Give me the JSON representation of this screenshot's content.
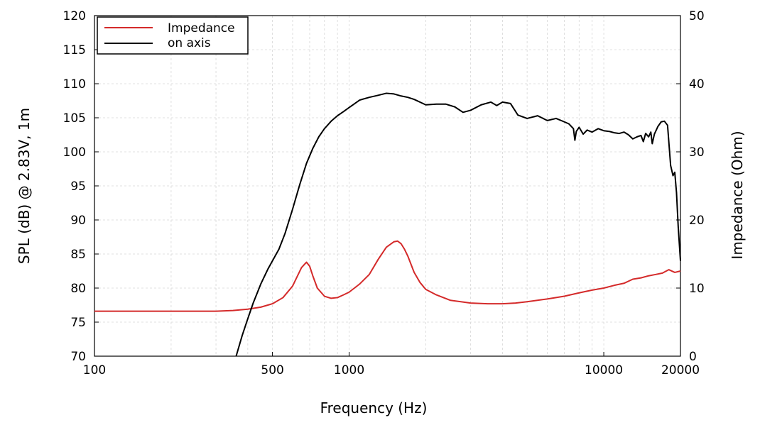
{
  "chart_data": {
    "type": "line",
    "title": "",
    "xlabel": "Frequency (Hz)",
    "ylabel": "SPL (dB) @ 2.83V, 1m",
    "y2label": "Impedance (Ohm)",
    "x_scale": "log",
    "xlim": [
      100,
      20000
    ],
    "ylim": [
      70,
      120
    ],
    "y2lim": [
      0,
      50
    ],
    "grid": true,
    "legend_position": "top-left",
    "x_ticks": [
      {
        "value": 100,
        "label": "100"
      },
      {
        "value": 500,
        "label": "500"
      },
      {
        "value": 1000,
        "label": "1000"
      },
      {
        "value": 10000,
        "label": "10000"
      },
      {
        "value": 20000,
        "label": "20000"
      }
    ],
    "y_ticks": [
      {
        "value": 70,
        "label": "70"
      },
      {
        "value": 75,
        "label": "75"
      },
      {
        "value": 80,
        "label": "80"
      },
      {
        "value": 85,
        "label": "85"
      },
      {
        "value": 90,
        "label": "90"
      },
      {
        "value": 95,
        "label": "95"
      },
      {
        "value": 100,
        "label": "100"
      },
      {
        "value": 105,
        "label": "105"
      },
      {
        "value": 110,
        "label": "110"
      },
      {
        "value": 115,
        "label": "115"
      },
      {
        "value": 120,
        "label": "120"
      }
    ],
    "y2_ticks": [
      {
        "value": 0,
        "label": "0"
      },
      {
        "value": 10,
        "label": "10"
      },
      {
        "value": 20,
        "label": "20"
      },
      {
        "value": 30,
        "label": "30"
      },
      {
        "value": 40,
        "label": "40"
      },
      {
        "value": 50,
        "label": "50"
      }
    ],
    "series": [
      {
        "name": "Impedance",
        "color": "#d42a2a",
        "axis": "right",
        "x": [
          100,
          200,
          300,
          350,
          400,
          450,
          500,
          550,
          600,
          650,
          680,
          700,
          720,
          750,
          800,
          850,
          900,
          950,
          1000,
          1100,
          1200,
          1300,
          1400,
          1500,
          1550,
          1600,
          1650,
          1700,
          1800,
          1900,
          2000,
          2200,
          2500,
          3000,
          3500,
          4000,
          4500,
          5000,
          6000,
          7000,
          8000,
          9000,
          10000,
          11000,
          12000,
          13000,
          14000,
          15000,
          16000,
          17000,
          18000,
          19000,
          20000
        ],
        "values": [
          6.6,
          6.6,
          6.6,
          6.7,
          6.9,
          7.2,
          7.7,
          8.6,
          10.3,
          13.0,
          13.8,
          13.2,
          11.8,
          10.0,
          8.8,
          8.5,
          8.6,
          9.0,
          9.4,
          10.6,
          12.0,
          14.2,
          16.0,
          16.8,
          16.9,
          16.5,
          15.7,
          14.7,
          12.3,
          10.8,
          9.8,
          9.0,
          8.2,
          7.8,
          7.7,
          7.7,
          7.8,
          8.0,
          8.4,
          8.8,
          9.3,
          9.7,
          10.0,
          10.4,
          10.7,
          11.3,
          11.5,
          11.8,
          12.0,
          12.2,
          12.7,
          12.3,
          12.5
        ]
      },
      {
        "name": "on axis",
        "color": "#000000",
        "axis": "left",
        "x": [
          360,
          380,
          400,
          420,
          450,
          480,
          500,
          530,
          560,
          600,
          640,
          680,
          720,
          760,
          800,
          850,
          900,
          950,
          1000,
          1100,
          1200,
          1300,
          1400,
          1500,
          1600,
          1700,
          1800,
          2000,
          2200,
          2400,
          2600,
          2800,
          3000,
          3300,
          3600,
          3800,
          4000,
          4300,
          4600,
          5000,
          5500,
          6000,
          6500,
          7000,
          7300,
          7600,
          7700,
          7800,
          8000,
          8300,
          8600,
          9000,
          9500,
          10000,
          10500,
          11000,
          11500,
          12000,
          12500,
          13000,
          13500,
          14000,
          14300,
          14600,
          15000,
          15300,
          15500,
          15800,
          16300,
          16800,
          17300,
          17800,
          18300,
          18700,
          19000,
          19300,
          19600,
          20000
        ],
        "values": [
          70.0,
          73.0,
          75.5,
          77.8,
          80.6,
          82.8,
          84.0,
          85.7,
          88.0,
          91.6,
          95.2,
          98.3,
          100.5,
          102.2,
          103.4,
          104.5,
          105.3,
          105.9,
          106.5,
          107.6,
          108.0,
          108.3,
          108.6,
          108.5,
          108.2,
          108.0,
          107.7,
          106.9,
          107.0,
          107.0,
          106.6,
          105.8,
          106.1,
          106.9,
          107.3,
          106.8,
          107.3,
          107.1,
          105.4,
          104.9,
          105.3,
          104.6,
          104.9,
          104.4,
          104.1,
          103.4,
          101.7,
          103.0,
          103.6,
          102.6,
          103.2,
          102.9,
          103.4,
          103.1,
          103.0,
          102.8,
          102.7,
          102.9,
          102.5,
          101.9,
          102.2,
          102.4,
          101.5,
          102.7,
          102.2,
          102.9,
          101.2,
          102.6,
          103.7,
          104.4,
          104.5,
          103.9,
          98.0,
          96.5,
          97.0,
          94.0,
          89.0,
          84.0
        ]
      }
    ]
  }
}
